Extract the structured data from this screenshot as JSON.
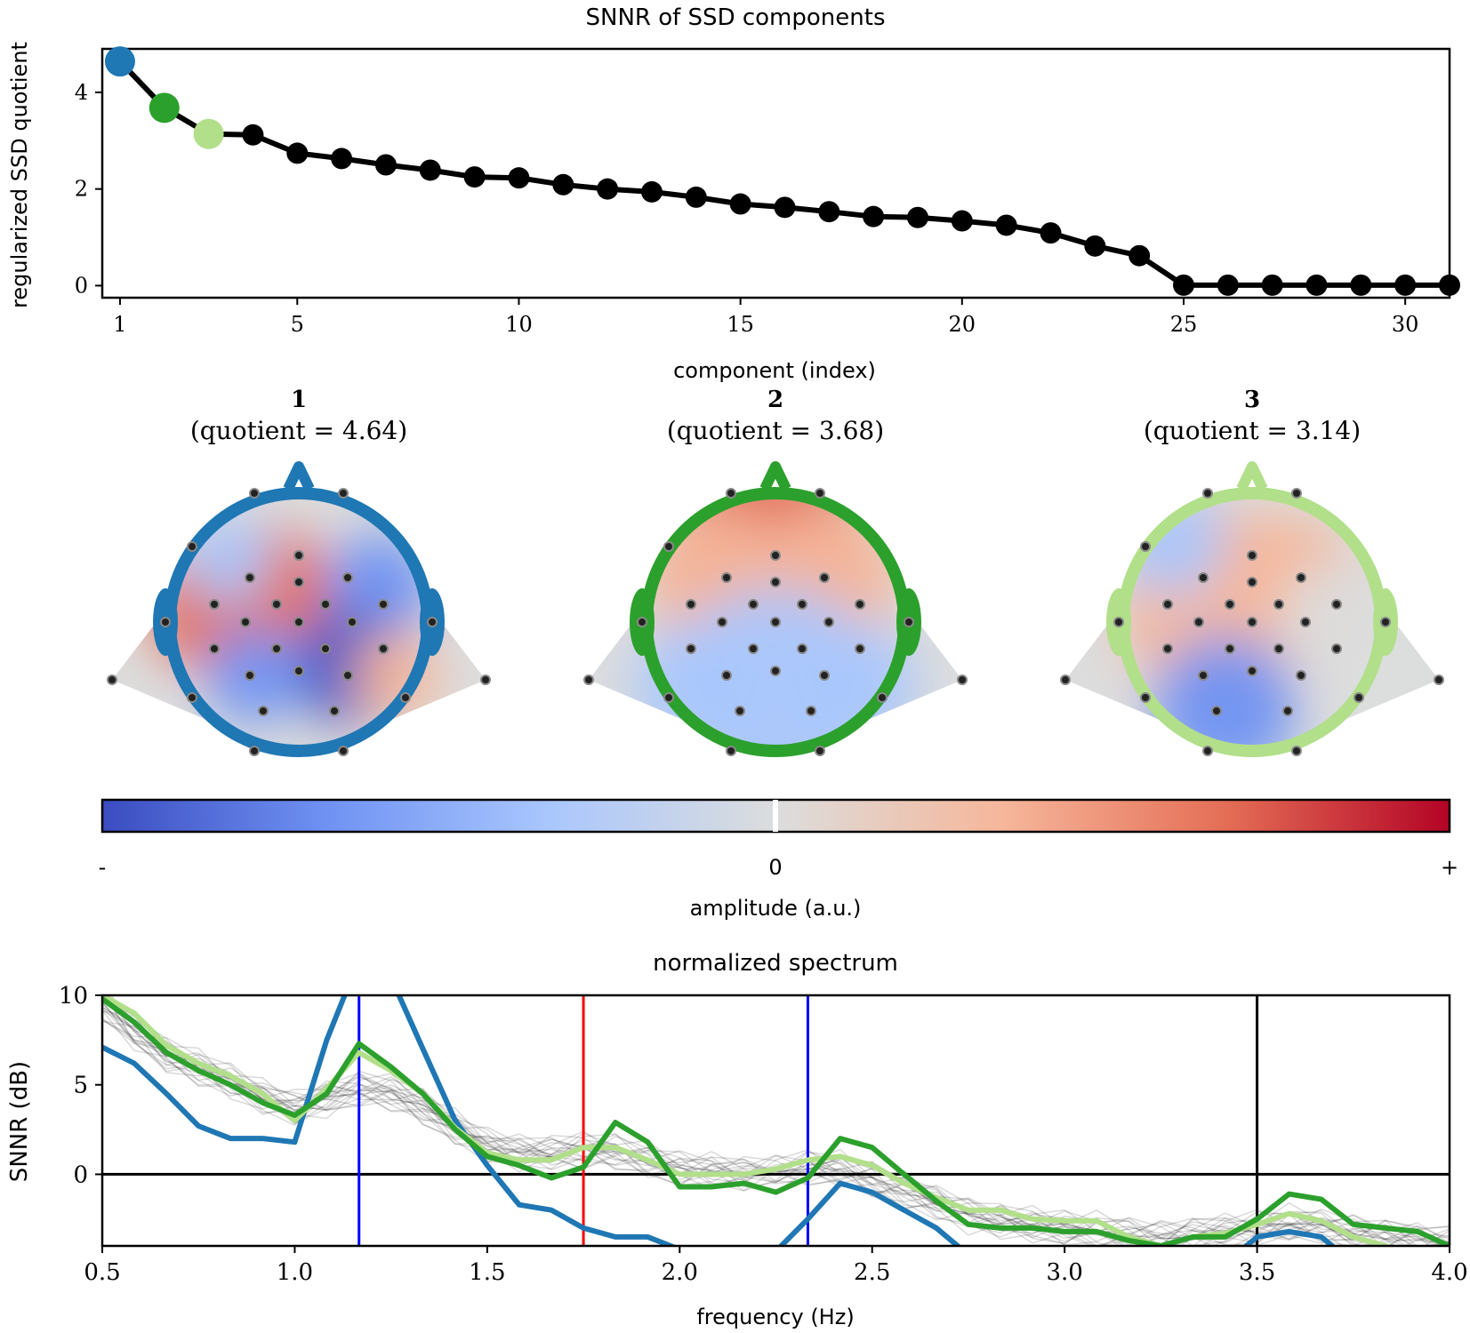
{
  "chart_data": [
    {
      "type": "line",
      "title": "SNNR of SSD components",
      "xlabel": "component (index)",
      "ylabel": "regularized SSD quotient",
      "xticks": [
        1,
        5,
        10,
        15,
        20,
        25,
        30
      ],
      "yticks": [
        0,
        2,
        4
      ],
      "xlim": [
        0.6,
        31
      ],
      "ylim": [
        -0.25,
        4.9
      ],
      "x": [
        1,
        2,
        3,
        4,
        5,
        6,
        7,
        8,
        9,
        10,
        11,
        12,
        13,
        14,
        15,
        16,
        17,
        18,
        19,
        20,
        21,
        22,
        23,
        24,
        25,
        26,
        27,
        28,
        29,
        30,
        31
      ],
      "values": [
        4.64,
        3.68,
        3.14,
        3.12,
        2.74,
        2.63,
        2.5,
        2.39,
        2.25,
        2.23,
        2.09,
        2.0,
        1.94,
        1.83,
        1.69,
        1.62,
        1.53,
        1.43,
        1.41,
        1.34,
        1.25,
        1.09,
        0.82,
        0.62,
        0.01,
        0.01,
        0.01,
        0.01,
        0.01,
        0.01,
        0.01
      ],
      "highlight": [
        {
          "index": 1,
          "color": "#1f77b4"
        },
        {
          "index": 2,
          "color": "#2ca02c"
        },
        {
          "index": 3,
          "color": "#b2df8a"
        }
      ],
      "line_color": "#000000"
    },
    {
      "type": "heatmap",
      "subtype": "topomap",
      "maps": [
        {
          "index_label": "1",
          "quotient_label": "(quotient = 4.64)",
          "outline_color": "#1f77b4"
        },
        {
          "index_label": "2",
          "quotient_label": "(quotient = 3.68)",
          "outline_color": "#2ca02c"
        },
        {
          "index_label": "3",
          "quotient_label": "(quotient = 3.14)",
          "outline_color": "#b2df8a"
        }
      ],
      "colorbar": {
        "label": "amplitude (a.u.)",
        "ticks": [
          "-",
          "0",
          "+"
        ],
        "colormap": "coolwarm",
        "colors": [
          "#3b4cc0",
          "#6f92f3",
          "#aac7fd",
          "#dcdddd",
          "#f6b79b",
          "#e46e56",
          "#b40426"
        ]
      }
    },
    {
      "type": "line",
      "title": "normalized spectrum",
      "xlabel": "frequency (Hz)",
      "ylabel": "SNNR (dB)",
      "xlim": [
        0.5,
        4.0
      ],
      "ylim": [
        -4.0,
        10
      ],
      "xticks": [
        "0.5",
        "1.0",
        "1.5",
        "2.0",
        "2.5",
        "3.0",
        "3.5",
        "4.0"
      ],
      "yticks": [
        0,
        5,
        10
      ],
      "x": [
        0.5,
        0.583,
        0.667,
        0.75,
        0.833,
        0.917,
        1.0,
        1.083,
        1.167,
        1.25,
        1.333,
        1.417,
        1.5,
        1.583,
        1.667,
        1.75,
        1.833,
        1.917,
        2.0,
        2.083,
        2.167,
        2.25,
        2.333,
        2.417,
        2.5,
        2.583,
        2.667,
        2.75,
        2.833,
        2.917,
        3.0,
        3.083,
        3.167,
        3.25,
        3.333,
        3.417,
        3.5,
        3.583,
        3.667,
        3.75,
        3.833,
        3.917,
        4.0
      ],
      "series": [
        {
          "color": "#1f77b4",
          "values": [
            7.1,
            6.2,
            4.5,
            2.7,
            2.0,
            2.0,
            1.8,
            7.5,
            12.0,
            11.0,
            7.0,
            3.0,
            0.5,
            -1.7,
            -2.0,
            -3.0,
            -3.5,
            -3.5,
            -4.2,
            -4.4,
            -4.5,
            -4.3,
            -2.5,
            -0.5,
            -1.0,
            -2.0,
            -3.0,
            -4.5,
            -5.0,
            -5.0,
            -5.0,
            -5.0,
            -5.0,
            -5.0,
            -5.0,
            -5.0,
            -3.5,
            -3.2,
            -3.5,
            -5.0,
            -5.0,
            -5.0,
            -5.0
          ]
        },
        {
          "color": "#2ca02c",
          "values": [
            9.8,
            8.5,
            6.8,
            5.8,
            5.0,
            4.0,
            3.3,
            4.5,
            7.3,
            6.0,
            4.5,
            2.5,
            1.0,
            0.5,
            -0.2,
            0.4,
            2.9,
            1.8,
            -0.7,
            -0.7,
            -0.5,
            -1.0,
            -0.2,
            2.0,
            1.5,
            0.0,
            -1.5,
            -2.8,
            -3.0,
            -3.0,
            -3.2,
            -3.2,
            -3.7,
            -4.0,
            -3.5,
            -3.5,
            -2.5,
            -1.1,
            -1.4,
            -2.8,
            -3.0,
            -3.2,
            -4.0
          ]
        },
        {
          "color": "#b2df8a",
          "values": [
            10.0,
            9.0,
            7.2,
            6.2,
            5.5,
            4.5,
            3.0,
            4.8,
            6.8,
            5.8,
            4.5,
            2.6,
            1.2,
            0.8,
            0.8,
            1.5,
            1.5,
            0.8,
            0.0,
            0.0,
            0.0,
            0.3,
            0.8,
            1.0,
            0.5,
            -0.5,
            -1.3,
            -2.0,
            -2.0,
            -2.5,
            -2.6,
            -2.6,
            -3.5,
            -4.0,
            -3.5,
            -3.3,
            -2.8,
            -2.2,
            -2.6,
            -3.5,
            -4.0,
            -4.5,
            -5.0
          ]
        },
        {
          "color": "#000000",
          "values": [
            9.5,
            8.0,
            6.7,
            6.0,
            5.2,
            4.3,
            3.7,
            4.2,
            4.8,
            4.6,
            3.8,
            2.6,
            1.6,
            1.2,
            1.2,
            1.4,
            1.3,
            0.8,
            0.3,
            0.2,
            0.0,
            0.1,
            0.4,
            0.3,
            -0.3,
            -0.9,
            -1.6,
            -2.3,
            -2.6,
            -2.8,
            -3.0,
            -3.1,
            -3.4,
            -3.6,
            -3.4,
            -3.2,
            -3.0,
            -2.7,
            -2.9,
            -3.3,
            -3.5,
            -3.7,
            -3.9
          ]
        }
      ],
      "vlines": [
        {
          "x": 1.167,
          "color": "#0000ff"
        },
        {
          "x": 1.75,
          "color": "#ff0000"
        },
        {
          "x": 2.333,
          "color": "#0000ff"
        },
        {
          "x": 3.5,
          "color": "#000000"
        }
      ],
      "hline": {
        "y": 0,
        "color": "#000000"
      }
    }
  ]
}
